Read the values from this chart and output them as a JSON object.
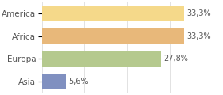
{
  "categories": [
    "America",
    "Africa",
    "Europa",
    "Asia"
  ],
  "values": [
    33.3,
    33.3,
    27.8,
    5.6
  ],
  "labels": [
    "33,3%",
    "33,3%",
    "27,8%",
    "5,6%"
  ],
  "bar_colors": [
    "#f5d98a",
    "#e8b87a",
    "#b5c98e",
    "#8090c0"
  ],
  "background_color": "#ffffff",
  "grid_color": "#dddddd",
  "xlim": [
    0,
    42
  ],
  "bar_height": 0.65,
  "label_fontsize": 7.0,
  "category_fontsize": 7.5,
  "text_color": "#555555"
}
